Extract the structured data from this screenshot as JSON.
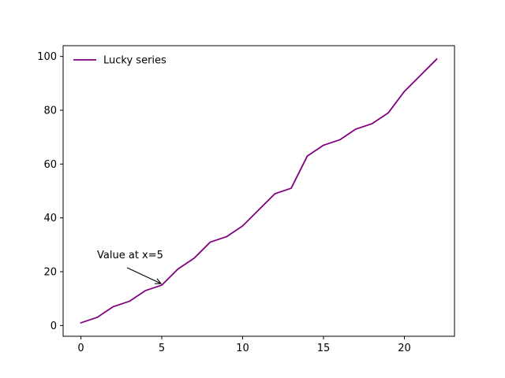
{
  "chart_data": {
    "type": "line",
    "title": "",
    "xlabel": "",
    "ylabel": "",
    "xlim": [
      -1.1,
      23.1
    ],
    "ylim": [
      -4,
      104
    ],
    "xticks": [
      0,
      5,
      10,
      15,
      20
    ],
    "yticks": [
      0,
      20,
      40,
      60,
      80,
      100
    ],
    "grid": false,
    "legend_position": "upper left",
    "series": [
      {
        "name": "Lucky series",
        "color": "#800080",
        "x": [
          0,
          1,
          2,
          3,
          4,
          5,
          6,
          7,
          8,
          9,
          10,
          11,
          12,
          13,
          14,
          15,
          16,
          17,
          18,
          19,
          20,
          21,
          22
        ],
        "y": [
          1,
          3,
          7,
          9,
          13,
          15,
          21,
          25,
          31,
          33,
          37,
          43,
          49,
          51,
          63,
          67,
          69,
          73,
          75,
          79,
          87,
          93,
          99
        ]
      }
    ],
    "annotations": [
      {
        "text": "Value at x=5",
        "point": {
          "x": 5,
          "y": 15
        },
        "text_anchor_point": {
          "x": 1,
          "y": 25
        }
      }
    ]
  }
}
